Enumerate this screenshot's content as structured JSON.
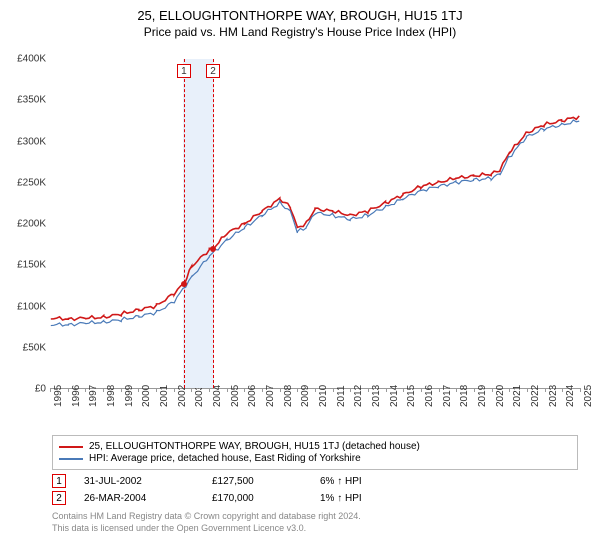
{
  "title": "25, ELLOUGHTONTHORPE WAY, BROUGH, HU15 1TJ",
  "subtitle": "Price paid vs. HM Land Registry's House Price Index (HPI)",
  "chart": {
    "type": "line",
    "ylim": [
      0,
      400000
    ],
    "ytick_step": 50000,
    "ylabels": [
      "£0",
      "£50K",
      "£100K",
      "£150K",
      "£200K",
      "£250K",
      "£300K",
      "£350K",
      "£400K"
    ],
    "xlim": [
      1995,
      2025
    ],
    "xticks": [
      1995,
      1996,
      1997,
      1998,
      1999,
      2000,
      2001,
      2002,
      2003,
      2004,
      2005,
      2006,
      2007,
      2008,
      2009,
      2010,
      2011,
      2012,
      2013,
      2014,
      2015,
      2016,
      2017,
      2018,
      2019,
      2020,
      2021,
      2022,
      2023,
      2024,
      2025
    ],
    "background_color": "#ffffff",
    "series": [
      {
        "name": "prop",
        "color": "#d01818",
        "width": 1.6,
        "values": [
          [
            1995,
            85000
          ],
          [
            1996,
            84000
          ],
          [
            1997,
            85000
          ],
          [
            1998,
            86000
          ],
          [
            1999,
            90000
          ],
          [
            2000,
            95000
          ],
          [
            2001,
            100000
          ],
          [
            2002,
            115000
          ],
          [
            2002.58,
            127500
          ],
          [
            2003,
            148000
          ],
          [
            2004,
            168000
          ],
          [
            2004.23,
            170000
          ],
          [
            2005,
            188000
          ],
          [
            2006,
            200000
          ],
          [
            2007,
            215000
          ],
          [
            2008,
            230000
          ],
          [
            2008.6,
            220000
          ],
          [
            2009,
            195000
          ],
          [
            2009.5,
            200000
          ],
          [
            2010,
            218000
          ],
          [
            2011,
            215000
          ],
          [
            2012,
            210000
          ],
          [
            2013,
            215000
          ],
          [
            2014,
            225000
          ],
          [
            2015,
            235000
          ],
          [
            2016,
            245000
          ],
          [
            2017,
            250000
          ],
          [
            2018,
            255000
          ],
          [
            2019,
            258000
          ],
          [
            2020,
            260000
          ],
          [
            2020.5,
            265000
          ],
          [
            2021,
            285000
          ],
          [
            2022,
            310000
          ],
          [
            2023,
            320000
          ],
          [
            2024,
            325000
          ],
          [
            2025,
            330000
          ]
        ]
      },
      {
        "name": "hpi",
        "color": "#4a7ab8",
        "width": 1.2,
        "values": [
          [
            1995,
            77000
          ],
          [
            1996,
            77000
          ],
          [
            1997,
            79000
          ],
          [
            1998,
            80000
          ],
          [
            1999,
            83000
          ],
          [
            2000,
            87000
          ],
          [
            2001,
            92000
          ],
          [
            2002,
            105000
          ],
          [
            2003,
            135000
          ],
          [
            2004,
            160000
          ],
          [
            2005,
            180000
          ],
          [
            2006,
            195000
          ],
          [
            2007,
            210000
          ],
          [
            2008,
            225000
          ],
          [
            2008.6,
            215000
          ],
          [
            2009,
            190000
          ],
          [
            2009.5,
            195000
          ],
          [
            2010,
            213000
          ],
          [
            2011,
            210000
          ],
          [
            2012,
            205000
          ],
          [
            2013,
            210000
          ],
          [
            2014,
            220000
          ],
          [
            2015,
            230000
          ],
          [
            2016,
            240000
          ],
          [
            2017,
            245000
          ],
          [
            2018,
            250000
          ],
          [
            2019,
            253000
          ],
          [
            2020,
            255000
          ],
          [
            2020.5,
            260000
          ],
          [
            2021,
            280000
          ],
          [
            2022,
            305000
          ],
          [
            2023,
            315000
          ],
          [
            2024,
            320000
          ],
          [
            2025,
            325000
          ]
        ]
      }
    ],
    "marker_band": {
      "start": 2002.5,
      "end": 2004.3,
      "color": "#e8f0fa"
    },
    "markers": [
      {
        "x": 2002.58,
        "label": "1"
      },
      {
        "x": 2004.23,
        "label": "2"
      }
    ],
    "points": [
      {
        "x": 2002.58,
        "y": 127500,
        "color": "#d01818"
      },
      {
        "x": 2004.23,
        "y": 170000,
        "color": "#d01818"
      }
    ]
  },
  "legend": {
    "items": [
      {
        "color": "#d01818",
        "label": "25, ELLOUGHTONTHORPE WAY, BROUGH, HU15 1TJ (detached house)"
      },
      {
        "color": "#4a7ab8",
        "label": "HPI: Average price, detached house, East Riding of Yorkshire"
      }
    ]
  },
  "data_points": [
    {
      "marker": "1",
      "date": "31-JUL-2002",
      "price": "£127,500",
      "delta": "6% ↑ HPI"
    },
    {
      "marker": "2",
      "date": "26-MAR-2004",
      "price": "£170,000",
      "delta": "1% ↑ HPI"
    }
  ],
  "footer": {
    "line1": "Contains HM Land Registry data © Crown copyright and database right 2024.",
    "line2": "This data is licensed under the Open Government Licence v3.0."
  }
}
